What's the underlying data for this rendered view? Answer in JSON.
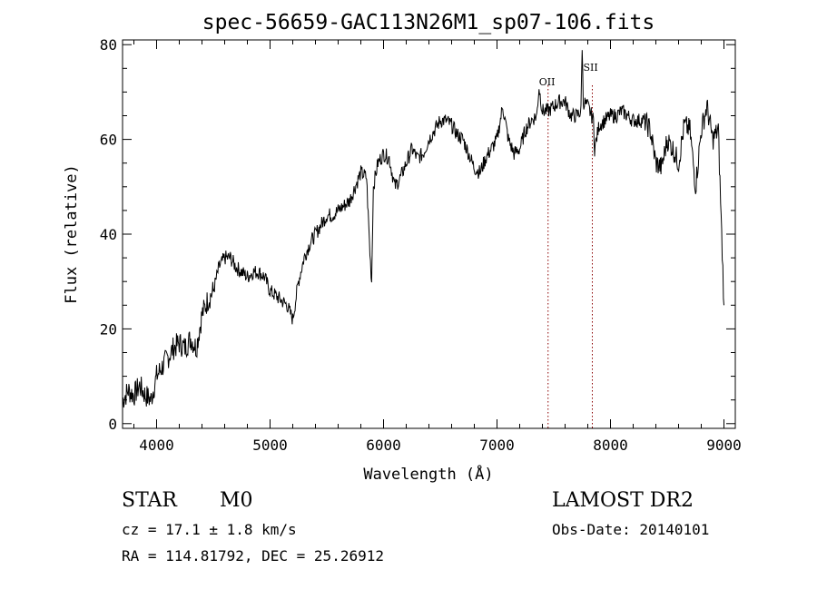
{
  "chart_data": {
    "type": "line",
    "title": "spec-56659-GAC113N26M1_sp07-106.fits",
    "xlabel": "Wavelength (Å)",
    "ylabel": "Flux (relative)",
    "xlim": [
      3700,
      9100
    ],
    "ylim": [
      -1,
      81
    ],
    "xticks": [
      4000,
      5000,
      6000,
      7000,
      8000,
      9000
    ],
    "yticks": [
      0,
      20,
      40,
      60,
      80
    ],
    "grid": false,
    "line_color": "#000000",
    "marker_color": "#8b0000",
    "series": [
      {
        "x": [
          3700,
          3750,
          3800,
          3850,
          3900,
          3950,
          4000,
          4050,
          4100,
          4150,
          4200,
          4250,
          4300,
          4350,
          4400,
          4450,
          4500,
          4550,
          4600,
          4650,
          4700,
          4750,
          4800,
          4850,
          4900,
          4950,
          5000,
          5050,
          5100,
          5150,
          5200,
          5250,
          5300,
          5350,
          5400,
          5450,
          5500,
          5550,
          5600,
          5650,
          5700,
          5750,
          5800,
          5850,
          5880,
          5895,
          5910,
          5950,
          6000,
          6050,
          6100,
          6150,
          6200,
          6250,
          6300,
          6350,
          6400,
          6450,
          6500,
          6550,
          6600,
          6650,
          6700,
          6750,
          6800,
          6850,
          6900,
          6950,
          7000,
          7050,
          7100,
          7150,
          7200,
          7250,
          7300,
          7350,
          7370,
          7400,
          7450,
          7500,
          7550,
          7600,
          7650,
          7700,
          7740,
          7750,
          7760,
          7800,
          7850,
          7860,
          7900,
          7950,
          8000,
          8050,
          8100,
          8150,
          8200,
          8250,
          8300,
          8350,
          8400,
          8450,
          8500,
          8550,
          8600,
          8650,
          8700,
          8750,
          8800,
          8850,
          8900,
          8950,
          9000
        ],
        "y": [
          5,
          7,
          6,
          8,
          6,
          5,
          10,
          12,
          14,
          16,
          17,
          16,
          18,
          16,
          23,
          26,
          28,
          33,
          35,
          35,
          33,
          32,
          31,
          32,
          32,
          31,
          28,
          27,
          26,
          25,
          22,
          30,
          35,
          38,
          40,
          42,
          44,
          44,
          45,
          46,
          47,
          50,
          53,
          52,
          36,
          30,
          50,
          55,
          57,
          56,
          50,
          52,
          55,
          58,
          56,
          57,
          60,
          62,
          64,
          64,
          63,
          61,
          60,
          57,
          54,
          53,
          56,
          58,
          60,
          67,
          60,
          57,
          58,
          62,
          64,
          65,
          71,
          66,
          66,
          67,
          68,
          68,
          65,
          65,
          66,
          80,
          68,
          67,
          64,
          58,
          63,
          64,
          65,
          65,
          66,
          65,
          64,
          64,
          64,
          62,
          55,
          54,
          60,
          58,
          55,
          63,
          62,
          50,
          62,
          67,
          60,
          62,
          25
        ]
      }
    ],
    "annotations": [
      {
        "label": "OII",
        "x": 7450
      },
      {
        "label": "SII",
        "x": 7840
      }
    ]
  },
  "footer": {
    "object_class": "STAR",
    "subclass": "M0",
    "survey": "LAMOST DR2",
    "redshift": "cz = 17.1 ± 1.8 km/s",
    "obs_date": "Obs-Date: 20140101",
    "coords": "RA = 114.81792, DEC =  25.26912"
  }
}
